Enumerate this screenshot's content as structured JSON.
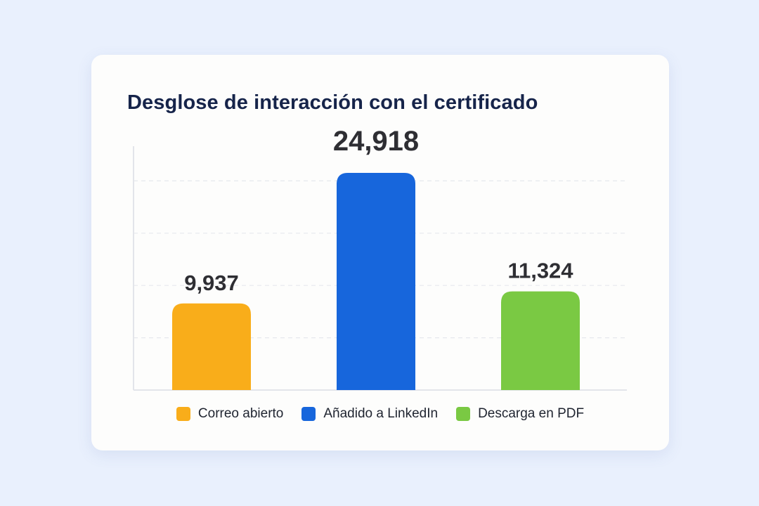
{
  "card": {
    "title": "Desglose de interacción con el certificado"
  },
  "chart_data": {
    "type": "bar",
    "title": "Desglose de interacción con el certificado",
    "categories": [
      "Correo abierto",
      "Añadido a LinkedIn",
      "Descarga en PDF"
    ],
    "values": [
      9937,
      24918,
      11324
    ],
    "value_labels": [
      "9,937",
      "24,918",
      "11,324"
    ],
    "colors": [
      "#f9ad1a",
      "#1766dc",
      "#7ac943"
    ],
    "xlabel": "",
    "ylabel": "",
    "ylim": [
      0,
      30000
    ],
    "grid": true,
    "grid_style": "dashed",
    "legend_position": "bottom"
  },
  "legend": {
    "items": [
      {
        "label": "Correo abierto",
        "color": "#f9ad1a"
      },
      {
        "label": "Añadido a LinkedIn",
        "color": "#1766dc"
      },
      {
        "label": "Descarga en PDF",
        "color": "#7ac943"
      }
    ]
  }
}
